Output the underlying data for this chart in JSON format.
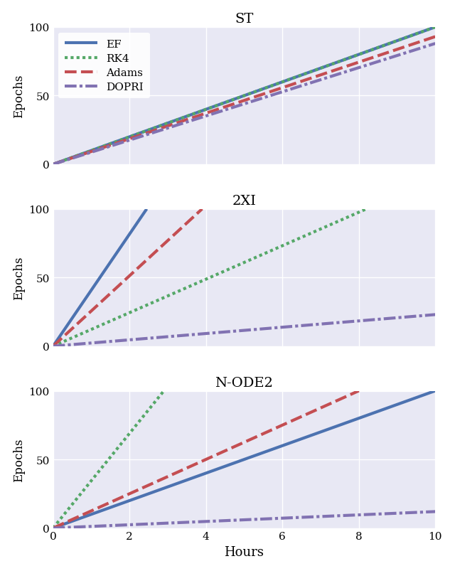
{
  "subplots": [
    {
      "title": "ST",
      "lines": [
        {
          "label": "EF",
          "style": "solid",
          "color": "#4C72B0",
          "lw": 3.0,
          "x": [
            0,
            10
          ],
          "y": [
            0,
            100
          ]
        },
        {
          "label": "RK4",
          "style": "dotted",
          "color": "#55A868",
          "lw": 3.0,
          "x": [
            0,
            10
          ],
          "y": [
            0,
            100
          ]
        },
        {
          "label": "Adams",
          "style": "dashed",
          "color": "#C44E52",
          "lw": 3.0,
          "x": [
            0,
            10
          ],
          "y": [
            0,
            93
          ]
        },
        {
          "label": "DOPRI",
          "style": "dashdot",
          "color": "#8172B2",
          "lw": 3.0,
          "x": [
            0,
            10
          ],
          "y": [
            0,
            88
          ]
        }
      ]
    },
    {
      "title": "2XI",
      "lines": [
        {
          "label": "EF",
          "style": "solid",
          "color": "#4C72B0",
          "lw": 3.0,
          "x": [
            0,
            2.45
          ],
          "y": [
            0,
            100
          ]
        },
        {
          "label": "RK4",
          "style": "dotted",
          "color": "#55A868",
          "lw": 3.0,
          "x": [
            0,
            8.2
          ],
          "y": [
            0,
            100
          ]
        },
        {
          "label": "Adams",
          "style": "dashed",
          "color": "#C44E52",
          "lw": 3.0,
          "x": [
            0,
            3.9
          ],
          "y": [
            0,
            100
          ]
        },
        {
          "label": "DOPRI",
          "style": "dashdot",
          "color": "#8172B2",
          "lw": 3.0,
          "x": [
            0,
            10
          ],
          "y": [
            0,
            23
          ]
        }
      ]
    },
    {
      "title": "N-ODE2",
      "lines": [
        {
          "label": "EF",
          "style": "solid",
          "color": "#4C72B0",
          "lw": 3.0,
          "x": [
            0,
            10
          ],
          "y": [
            0,
            100
          ]
        },
        {
          "label": "RK4",
          "style": "dotted",
          "color": "#55A868",
          "lw": 3.0,
          "x": [
            0,
            2.9
          ],
          "y": [
            0,
            100
          ]
        },
        {
          "label": "Adams",
          "style": "dashed",
          "color": "#C44E52",
          "lw": 3.0,
          "x": [
            0,
            8.0
          ],
          "y": [
            0,
            100
          ]
        },
        {
          "label": "DOPRI",
          "style": "dashdot",
          "color": "#8172B2",
          "lw": 3.0,
          "x": [
            0,
            10
          ],
          "y": [
            0,
            12
          ]
        }
      ]
    }
  ],
  "xlabel": "Hours",
  "ylabel": "Epochs",
  "xlim": [
    0,
    10
  ],
  "ylim": [
    0,
    100
  ],
  "xticks": [
    0,
    2,
    4,
    6,
    8,
    10
  ],
  "yticks": [
    0,
    50,
    100
  ],
  "bg_color": "#E8E8F4",
  "legend_subplot": 0,
  "figsize": [
    6.4,
    8.04
  ],
  "dpi": 100
}
